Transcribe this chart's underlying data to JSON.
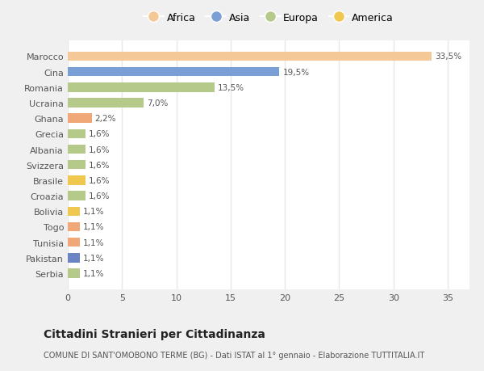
{
  "countries": [
    "Serbia",
    "Pakistan",
    "Tunisia",
    "Togo",
    "Bolivia",
    "Croazia",
    "Brasile",
    "Svizzera",
    "Albania",
    "Grecia",
    "Ghana",
    "Ucraina",
    "Romania",
    "Cina",
    "Marocco"
  ],
  "values": [
    1.1,
    1.1,
    1.1,
    1.1,
    1.1,
    1.6,
    1.6,
    1.6,
    1.6,
    1.6,
    2.2,
    7.0,
    13.5,
    19.5,
    33.5
  ],
  "labels": [
    "1,1%",
    "1,1%",
    "1,1%",
    "1,1%",
    "1,1%",
    "1,6%",
    "1,6%",
    "1,6%",
    "1,6%",
    "1,6%",
    "2,2%",
    "7,0%",
    "13,5%",
    "19,5%",
    "33,5%"
  ],
  "colors": [
    "#b5c98a",
    "#6b84c4",
    "#f0a878",
    "#f0a878",
    "#f0c850",
    "#b5c98a",
    "#f0c850",
    "#b5c98a",
    "#b5c98a",
    "#b5c98a",
    "#f0a878",
    "#b5c98a",
    "#b5c98a",
    "#7a9fd4",
    "#f5c898"
  ],
  "legend_labels": [
    "Africa",
    "Asia",
    "Europa",
    "America"
  ],
  "legend_colors": [
    "#f5c898",
    "#7a9fd4",
    "#b5c98a",
    "#f0c850"
  ],
  "title": "Cittadini Stranieri per Cittadinanza",
  "subtitle": "COMUNE DI SANT'OMOBONO TERME (BG) - Dati ISTAT al 1° gennaio - Elaborazione TUTTITALIA.IT",
  "xlim": [
    0,
    37
  ],
  "xticks": [
    0,
    5,
    10,
    15,
    20,
    25,
    30,
    35
  ],
  "fig_bg_color": "#f0f0f0",
  "plot_bg_color": "#ffffff",
  "grid_color": "#e8e8e8",
  "text_color": "#555555",
  "title_color": "#222222"
}
